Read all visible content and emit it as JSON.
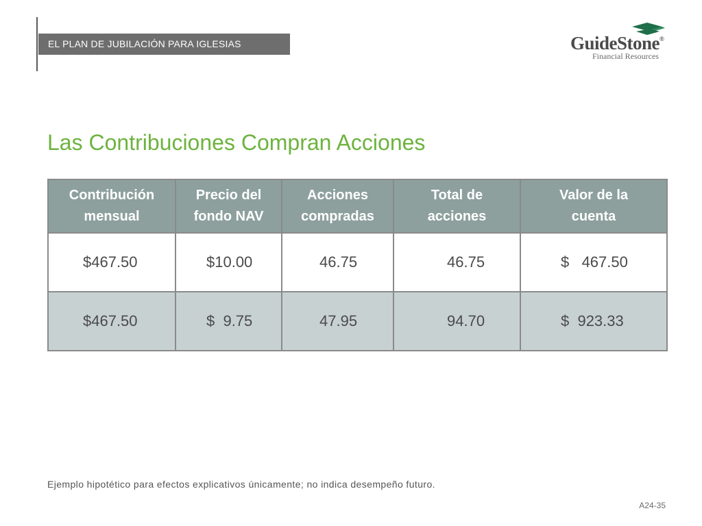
{
  "header": {
    "section_label": "EL PLAN DE JUBILACIÓN PARA IGLESIAS"
  },
  "logo": {
    "name": "GuideStone",
    "registered": "®",
    "subtitle": "Financial Resources",
    "mark_color": "#1f6f49"
  },
  "title": "Las Contribuciones Compran Acciones",
  "table": {
    "headers": [
      "Contribución mensual",
      "Precio del fondo NAV",
      "Acciones compradas",
      "Total de acciones",
      "Valor de la cuenta"
    ],
    "rows": [
      [
        "$467.50",
        "$10.00",
        "46.75",
        "46.75",
        "$   467.50"
      ],
      [
        "$467.50",
        "$  9.75",
        "47.95",
        "94.70",
        "$  923.33"
      ]
    ]
  },
  "footnote": "Ejemplo hipotético para efectos explicativos únicamente; no indica desempeño futuro.",
  "page_number": "A24-35",
  "colors": {
    "title_green": "#6db33f",
    "header_bar": "#6e6e6e",
    "table_header": "#8da09d",
    "alt_row": "#c8d1d2"
  }
}
